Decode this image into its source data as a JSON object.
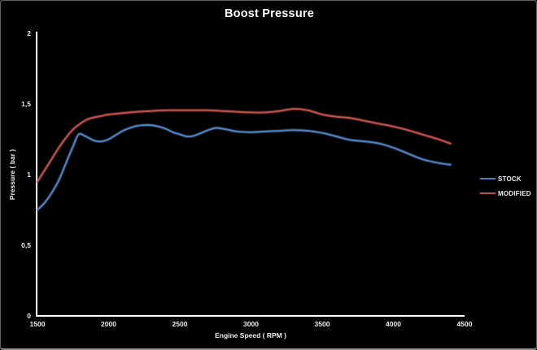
{
  "window": {
    "background": "#000000",
    "frame_border_color": "#8c8c8c",
    "text_color": "#efefef"
  },
  "chart_data": {
    "type": "line",
    "title": "Boost Pressure",
    "xlabel": "Engine Speed ( RPM )",
    "ylabel": "Pressure ( bar )",
    "xlim": [
      1500,
      4500
    ],
    "ylim": [
      0,
      2
    ],
    "x_ticks": [
      1500,
      2000,
      2500,
      3000,
      3500,
      4000,
      4500
    ],
    "y_ticks": [
      0,
      0.5,
      1,
      1.5,
      2
    ],
    "y_tick_labels": [
      "0",
      "0,5",
      "1",
      "1,5",
      "2"
    ],
    "grid": false,
    "legend_position": "right",
    "axis_color": "#ffffff",
    "series": [
      {
        "name": "STOCK",
        "color": "#4f81bd",
        "points": [
          [
            1500,
            0.75
          ],
          [
            1550,
            0.8
          ],
          [
            1600,
            0.87
          ],
          [
            1650,
            0.96
          ],
          [
            1700,
            1.08
          ],
          [
            1750,
            1.2
          ],
          [
            1790,
            1.285
          ],
          [
            1840,
            1.27
          ],
          [
            1900,
            1.24
          ],
          [
            1950,
            1.235
          ],
          [
            2000,
            1.25
          ],
          [
            2050,
            1.28
          ],
          [
            2100,
            1.31
          ],
          [
            2150,
            1.33
          ],
          [
            2200,
            1.345
          ],
          [
            2250,
            1.35
          ],
          [
            2300,
            1.35
          ],
          [
            2350,
            1.34
          ],
          [
            2400,
            1.325
          ],
          [
            2450,
            1.3
          ],
          [
            2500,
            1.285
          ],
          [
            2550,
            1.27
          ],
          [
            2600,
            1.275
          ],
          [
            2650,
            1.295
          ],
          [
            2700,
            1.315
          ],
          [
            2750,
            1.33
          ],
          [
            2800,
            1.325
          ],
          [
            2850,
            1.315
          ],
          [
            2900,
            1.305
          ],
          [
            3000,
            1.3
          ],
          [
            3100,
            1.305
          ],
          [
            3200,
            1.31
          ],
          [
            3300,
            1.315
          ],
          [
            3400,
            1.31
          ],
          [
            3500,
            1.295
          ],
          [
            3600,
            1.27
          ],
          [
            3700,
            1.245
          ],
          [
            3800,
            1.235
          ],
          [
            3900,
            1.22
          ],
          [
            4000,
            1.19
          ],
          [
            4100,
            1.15
          ],
          [
            4200,
            1.11
          ],
          [
            4300,
            1.085
          ],
          [
            4400,
            1.07
          ]
        ]
      },
      {
        "name": "MODIFIED",
        "color": "#c0504d",
        "points": [
          [
            1500,
            0.95
          ],
          [
            1550,
            1.03
          ],
          [
            1600,
            1.11
          ],
          [
            1650,
            1.19
          ],
          [
            1700,
            1.26
          ],
          [
            1750,
            1.32
          ],
          [
            1800,
            1.36
          ],
          [
            1850,
            1.39
          ],
          [
            1900,
            1.405
          ],
          [
            1950,
            1.415
          ],
          [
            2000,
            1.425
          ],
          [
            2100,
            1.435
          ],
          [
            2200,
            1.445
          ],
          [
            2300,
            1.45
          ],
          [
            2400,
            1.455
          ],
          [
            2500,
            1.455
          ],
          [
            2600,
            1.455
          ],
          [
            2700,
            1.455
          ],
          [
            2800,
            1.45
          ],
          [
            2900,
            1.445
          ],
          [
            3000,
            1.44
          ],
          [
            3100,
            1.44
          ],
          [
            3200,
            1.45
          ],
          [
            3300,
            1.465
          ],
          [
            3400,
            1.455
          ],
          [
            3500,
            1.425
          ],
          [
            3600,
            1.41
          ],
          [
            3700,
            1.4
          ],
          [
            3800,
            1.38
          ],
          [
            3900,
            1.36
          ],
          [
            4000,
            1.34
          ],
          [
            4100,
            1.315
          ],
          [
            4200,
            1.285
          ],
          [
            4300,
            1.255
          ],
          [
            4400,
            1.22
          ]
        ]
      }
    ]
  }
}
